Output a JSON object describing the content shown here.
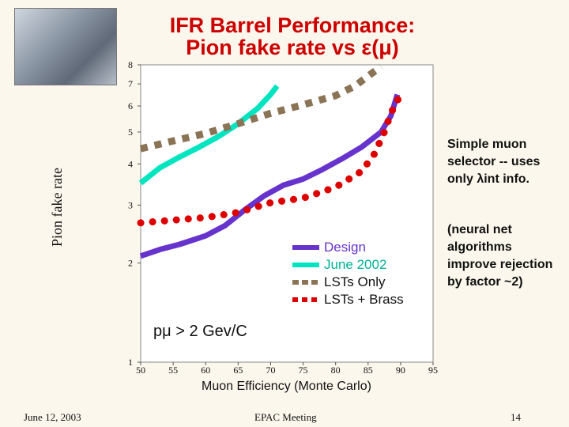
{
  "slide": {
    "title_line1": "IFR Barrel Performance:",
    "title_line2": "Pion fake rate vs ε(μ)",
    "note1": "Simple muon selector -- uses only λint info.",
    "note2": "(neural net algorithms improve rejection by factor ~2)",
    "cut_label": "pμ > 2 Gev/C",
    "footer_date": "June 12, 2003",
    "footer_meeting": "EPAC Meeting",
    "footer_page": "14"
  },
  "chart_data": {
    "type": "line",
    "title": "",
    "xlabel": "Muon Efficiency (Monte Carlo)",
    "ylabel": "Pion fake rate",
    "xlim": [
      50,
      95
    ],
    "ylim": [
      1,
      8
    ],
    "x_ticks": [
      50,
      55,
      60,
      65,
      70,
      75,
      80,
      85,
      90,
      95
    ],
    "y_ticks": [
      1,
      2,
      3,
      4,
      5,
      6,
      7,
      8
    ],
    "grid": false,
    "legend_position": "lower-right",
    "series": [
      {
        "name": "Design",
        "color": "#6633cc",
        "style": "solid",
        "points": [
          [
            50,
            2.1
          ],
          [
            53,
            2.2
          ],
          [
            56,
            2.28
          ],
          [
            60,
            2.42
          ],
          [
            63,
            2.6
          ],
          [
            66,
            2.9
          ],
          [
            69,
            3.2
          ],
          [
            72,
            3.45
          ],
          [
            75,
            3.6
          ],
          [
            78,
            3.85
          ],
          [
            81,
            4.15
          ],
          [
            84,
            4.5
          ],
          [
            87,
            5.0
          ],
          [
            88.5,
            5.6
          ],
          [
            89.5,
            6.5
          ]
        ]
      },
      {
        "name": "June 2002",
        "color": "#00e5c0",
        "style": "solid",
        "points": [
          [
            50,
            3.5
          ],
          [
            53,
            3.9
          ],
          [
            56,
            4.2
          ],
          [
            59,
            4.5
          ],
          [
            62,
            4.85
          ],
          [
            65,
            5.3
          ],
          [
            68,
            5.9
          ],
          [
            70,
            6.5
          ],
          [
            71,
            6.9
          ]
        ]
      },
      {
        "name": "LSTs Only",
        "color": "#8b7355",
        "style": "dashed",
        "points": [
          [
            50,
            4.45
          ],
          [
            55,
            4.7
          ],
          [
            60,
            4.95
          ],
          [
            65,
            5.3
          ],
          [
            70,
            5.7
          ],
          [
            75,
            6.05
          ],
          [
            80,
            6.45
          ],
          [
            83,
            6.9
          ],
          [
            85,
            7.4
          ],
          [
            87,
            7.9
          ]
        ]
      },
      {
        "name": "LSTs + Brass",
        "color": "#dd0000",
        "style": "dotted",
        "points": [
          [
            50,
            2.65
          ],
          [
            55,
            2.7
          ],
          [
            60,
            2.75
          ],
          [
            65,
            2.85
          ],
          [
            70,
            3.05
          ],
          [
            75,
            3.15
          ],
          [
            80,
            3.4
          ],
          [
            84,
            3.8
          ],
          [
            86,
            4.3
          ],
          [
            87.5,
            5.0
          ],
          [
            88.5,
            5.7
          ],
          [
            90,
            6.5
          ]
        ]
      }
    ]
  }
}
